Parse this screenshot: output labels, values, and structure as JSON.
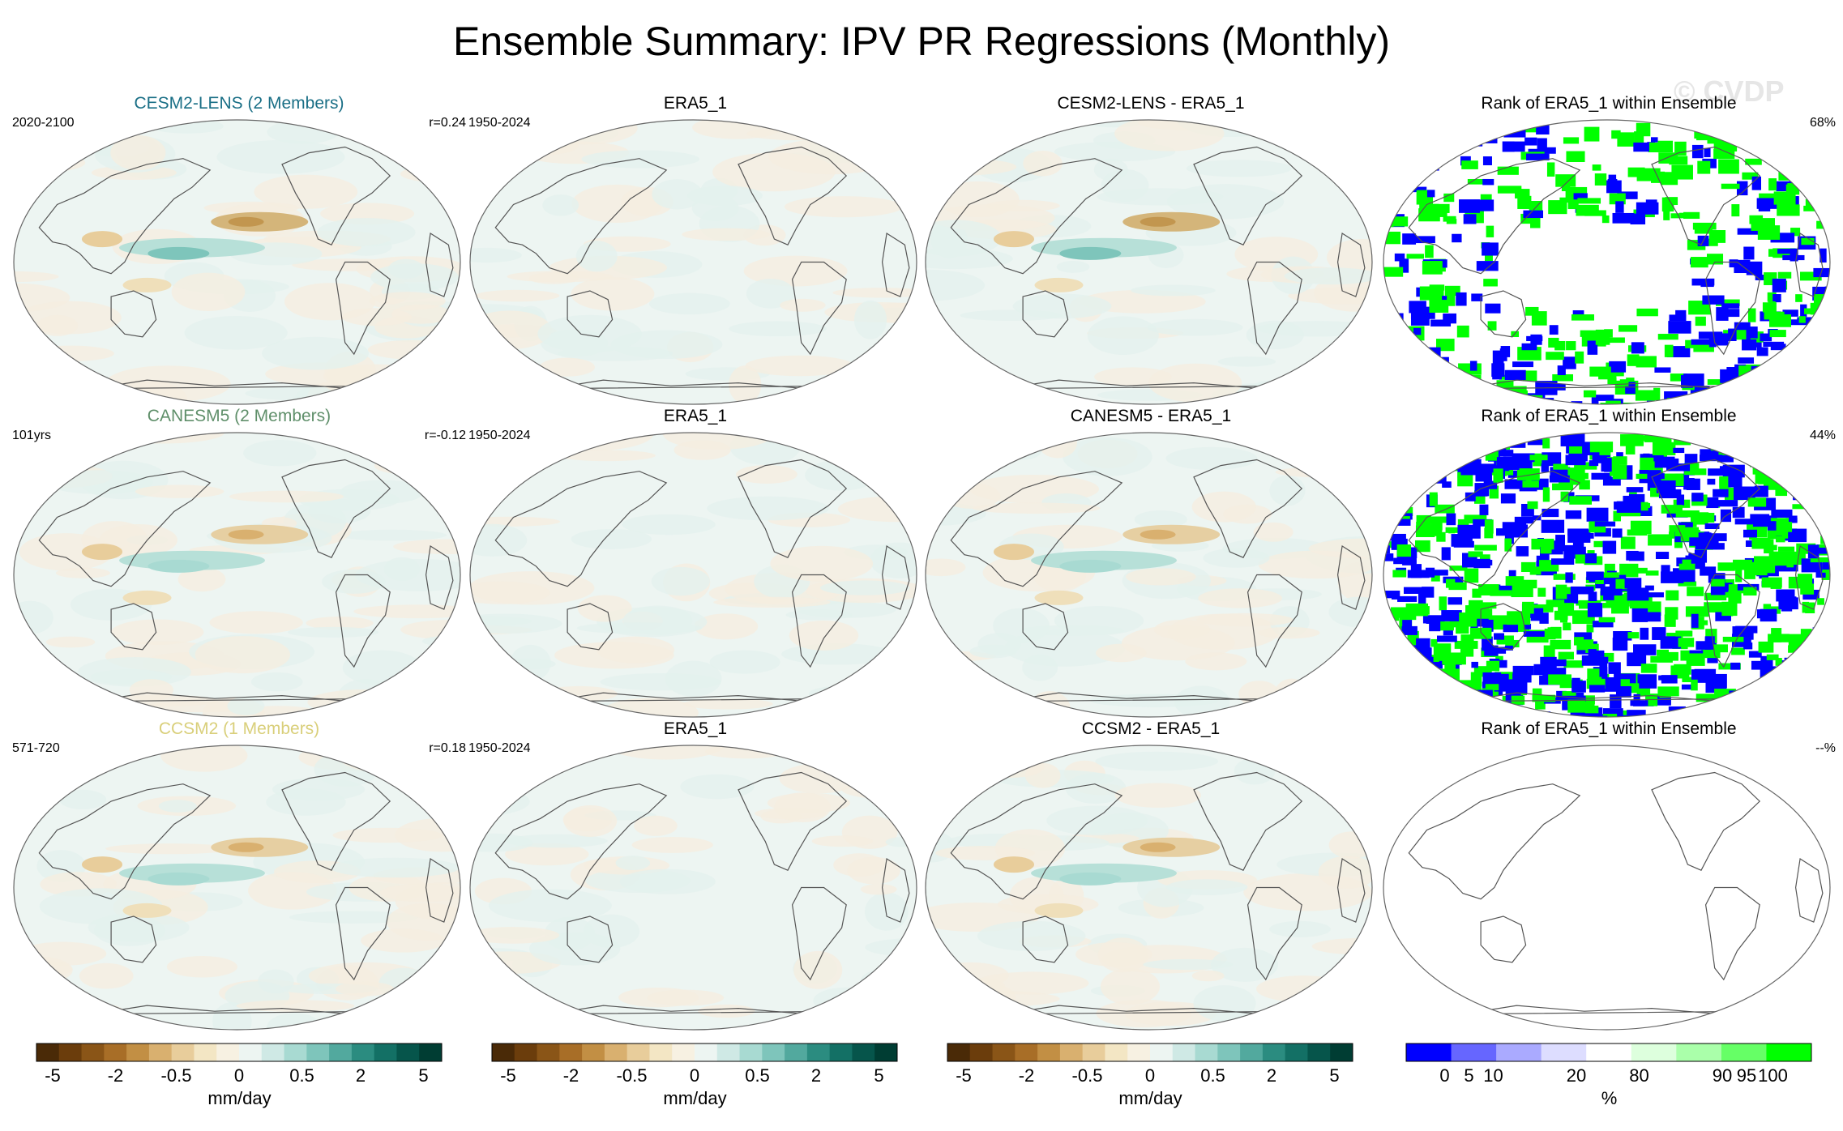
{
  "title": "Ensemble Summary: IPV PR Regressions (Monthly)",
  "watermark": "© CVDP",
  "rows": [
    {
      "panels": [
        {
          "title": "CESM2-LENS (2 Members)",
          "title_color": "#1a6f86",
          "left": "2020-2100",
          "right": "r=0.24",
          "kind": "model"
        },
        {
          "title": "ERA5_1",
          "title_color": "#000000",
          "left": "1950-2024",
          "right": "",
          "kind": "obs"
        },
        {
          "title": "CESM2-LENS - ERA5_1",
          "title_color": "#000000",
          "left": "",
          "right": "",
          "kind": "diff"
        },
        {
          "title": "Rank of ERA5_1 within Ensemble",
          "title_color": "#000000",
          "left": "",
          "right": "68%",
          "kind": "rank"
        }
      ]
    },
    {
      "panels": [
        {
          "title": "CANESM5 (2 Members)",
          "title_color": "#5f8f6a",
          "left": "101yrs",
          "right": "r=-0.12",
          "kind": "model"
        },
        {
          "title": "ERA5_1",
          "title_color": "#000000",
          "left": "1950-2024",
          "right": "",
          "kind": "obs"
        },
        {
          "title": "CANESM5 - ERA5_1",
          "title_color": "#000000",
          "left": "",
          "right": "",
          "kind": "diff"
        },
        {
          "title": "Rank of ERA5_1 within Ensemble",
          "title_color": "#000000",
          "left": "",
          "right": "44%",
          "kind": "rank"
        }
      ]
    },
    {
      "panels": [
        {
          "title": "CCSM2 (1 Members)",
          "title_color": "#d9cf7a",
          "left": "571-720",
          "right": "r=0.18",
          "kind": "model"
        },
        {
          "title": "ERA5_1",
          "title_color": "#000000",
          "left": "1950-2024",
          "right": "",
          "kind": "obs"
        },
        {
          "title": "CCSM2 - ERA5_1",
          "title_color": "#000000",
          "left": "",
          "right": "",
          "kind": "diff"
        },
        {
          "title": "Rank of ERA5_1 within Ensemble",
          "title_color": "#000000",
          "left": "",
          "right": "--%",
          "kind": "rank"
        }
      ]
    }
  ],
  "pr_colorbar": {
    "colors": [
      "#4a2a07",
      "#6b3d0c",
      "#8a5517",
      "#a86e27",
      "#c28f44",
      "#d9b06f",
      "#e8cd9b",
      "#f3e6c4",
      "#f7f1e2",
      "#edf5f2",
      "#cfe9e5",
      "#a8dad2",
      "#7ec5bb",
      "#52a99e",
      "#2b8c80",
      "#137065",
      "#06554b",
      "#003d33"
    ],
    "ticks": [
      "-5",
      "-2",
      "-0.5",
      "0",
      "0.5",
      "2",
      "5"
    ],
    "units": "mm/day"
  },
  "rank_colorbar": {
    "colors": [
      "#0000ff",
      "#6666ff",
      "#aaaaff",
      "#ddddff",
      "#ffffff",
      "#ddffdd",
      "#aaffaa",
      "#66ff66",
      "#00ff00"
    ],
    "ticks": [
      "0",
      "5",
      "10",
      "20",
      "80",
      "90",
      "95",
      "100"
    ],
    "units": "%"
  }
}
